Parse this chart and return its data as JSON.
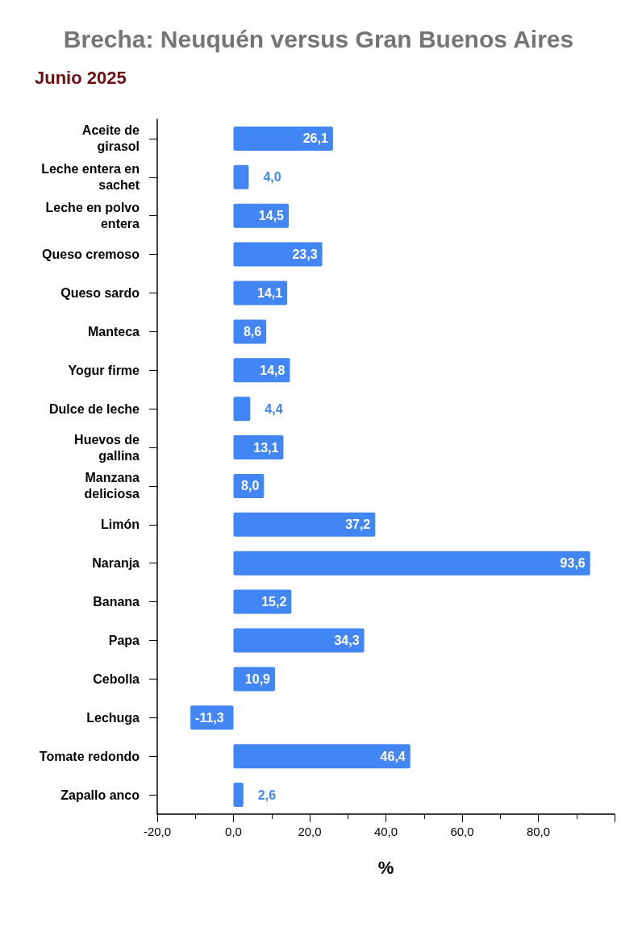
{
  "chart_data": {
    "type": "bar",
    "orientation": "horizontal",
    "title": "Brecha: Neuquén versus Gran Buenos Aires",
    "subtitle": "Junio 2025",
    "xlabel": "%",
    "categories": [
      "Aceite de girasol",
      "Leche entera en sachet",
      "Leche en polvo entera",
      "Queso cremoso",
      "Queso sardo",
      "Manteca",
      "Yogur firme",
      "Dulce de leche",
      "Huevos de gallina",
      "Manzana deliciosa",
      "Limón",
      "Naranja",
      "Banana",
      "Papa",
      "Cebolla",
      "Lechuga",
      "Tomate redondo",
      "Zapallo anco"
    ],
    "values": [
      26.1,
      4.0,
      14.5,
      23.3,
      14.1,
      8.6,
      14.8,
      4.4,
      13.1,
      8.0,
      37.2,
      93.6,
      15.2,
      34.3,
      10.9,
      -11.3,
      46.4,
      2.6
    ],
    "value_labels": [
      "26,1",
      "4,0",
      "14,5",
      "23,3",
      "14,1",
      "8,6",
      "14,8",
      "4,4",
      "13,1",
      "8,0",
      "37,2",
      "93,6",
      "15,2",
      "34,3",
      "10,9",
      "-11,3",
      "46,4",
      "2,6"
    ],
    "color": "#4285f4",
    "xlim": [
      -20,
      100
    ],
    "xticks": [
      {
        "value": -20,
        "label": "-20,0"
      },
      {
        "value": 0,
        "label": "0,0"
      },
      {
        "value": 20,
        "label": "20,0"
      },
      {
        "value": 40,
        "label": "40,0"
      },
      {
        "value": 60,
        "label": "60,0"
      },
      {
        "value": 80,
        "label": "80,0"
      },
      {
        "value": 100,
        "label": null
      }
    ],
    "grid": false
  }
}
